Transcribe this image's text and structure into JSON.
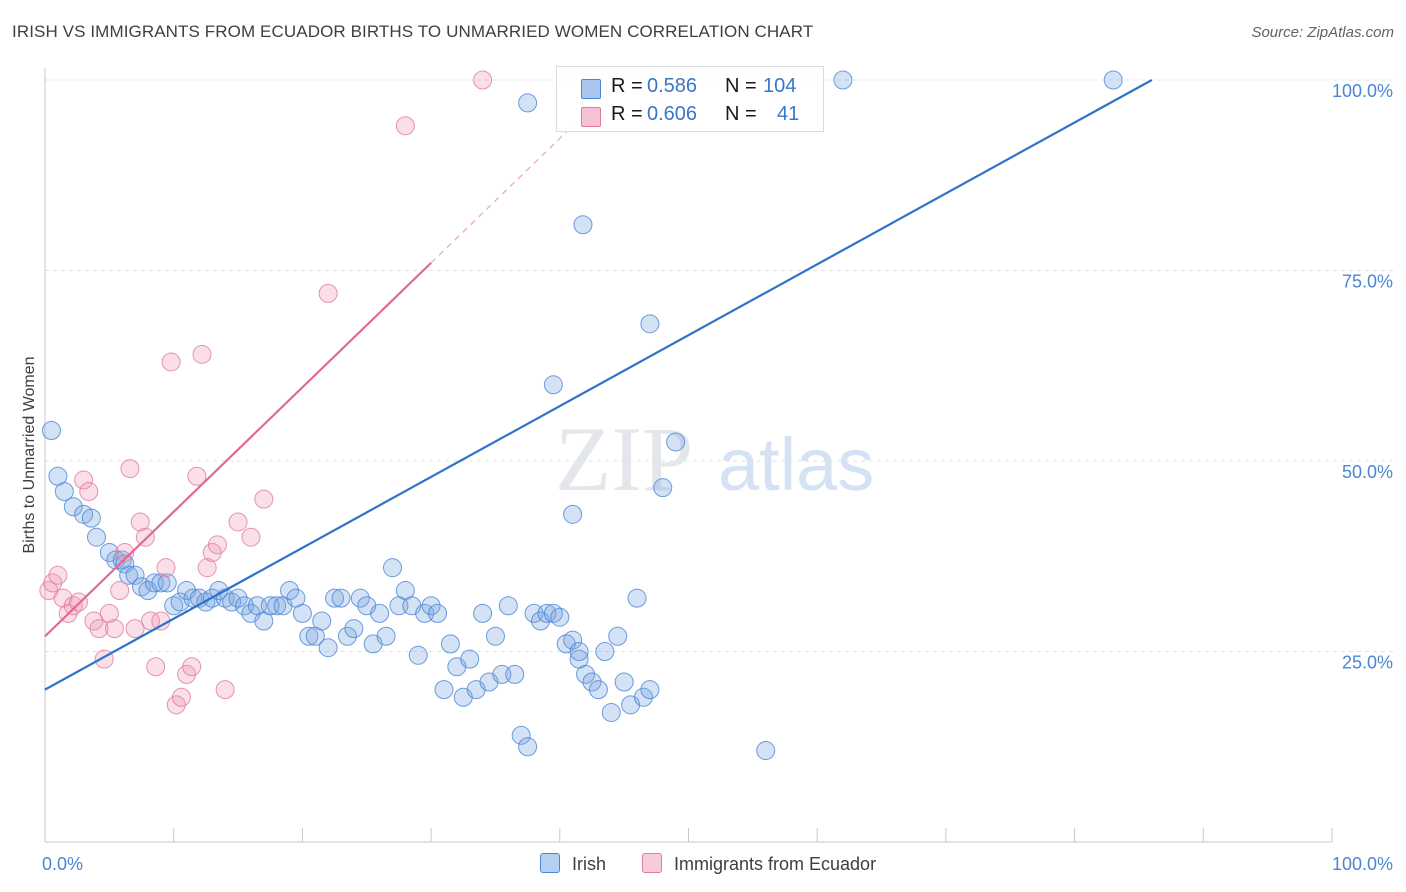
{
  "title": "IRISH VS IMMIGRANTS FROM ECUADOR BIRTHS TO UNMARRIED WOMEN CORRELATION CHART",
  "source": "Source: ZipAtlas.com",
  "watermark": {
    "zip": "ZIP",
    "atlas": "atlas"
  },
  "colors": {
    "blue": "#4a86d4",
    "blue_fill": "rgba(120,165,225,0.32)",
    "pink": "#e07aa0",
    "pink_fill": "rgba(240,150,180,0.30)",
    "axis_text": "#4a86d4",
    "grid": "#dde1e6"
  },
  "legend": {
    "rows": [
      {
        "r_label": "R =",
        "r_value": "0.586",
        "n_label": "N =",
        "n_value": "104",
        "swatch": "#a9c6ee",
        "border": "#4a86d4"
      },
      {
        "r_label": "R =",
        "r_value": "0.606",
        "n_label": "N =",
        "n_value": "41",
        "swatch": "#f6c1d3",
        "border": "#e07aa0"
      }
    ]
  },
  "bottom_legend": [
    {
      "label": "Irish",
      "swatch": "#b7d0f1",
      "border": "#4a86d4"
    },
    {
      "label": "Immigrants from Ecuador",
      "swatch": "#f8cbdb",
      "border": "#e07aa0"
    }
  ],
  "chart_data": {
    "type": "scatter",
    "title": "IRISH VS IMMIGRANTS FROM ECUADOR BIRTHS TO UNMARRIED WOMEN CORRELATION CHART",
    "xlabel": "",
    "ylabel": "Births to Unmarried Women",
    "xlim": [
      0,
      100
    ],
    "ylim": [
      0,
      100
    ],
    "x_tick_labels": [
      "0.0%",
      "100.0%"
    ],
    "y_ticks": [
      25,
      50,
      75,
      100
    ],
    "y_tick_labels": [
      "25.0%",
      "50.0%",
      "75.0%",
      "100.0%"
    ],
    "series": [
      {
        "name": "Irish",
        "r": 0.586,
        "n": 104,
        "trend": {
          "x0": 0,
          "y0": 20,
          "x1": 86,
          "y1": 100
        },
        "points": [
          [
            0.5,
            54
          ],
          [
            1,
            48
          ],
          [
            1.5,
            46
          ],
          [
            2.2,
            44
          ],
          [
            3,
            43
          ],
          [
            3.6,
            42.5
          ],
          [
            4,
            40
          ],
          [
            5,
            38
          ],
          [
            5.5,
            37
          ],
          [
            6,
            37
          ],
          [
            6.2,
            36.5
          ],
          [
            6.5,
            35
          ],
          [
            7,
            35
          ],
          [
            7.5,
            33.5
          ],
          [
            8,
            33
          ],
          [
            8.5,
            34
          ],
          [
            9,
            34
          ],
          [
            9.5,
            34
          ],
          [
            10,
            31
          ],
          [
            10.5,
            31.5
          ],
          [
            11,
            33
          ],
          [
            11.5,
            32
          ],
          [
            12,
            32
          ],
          [
            12.5,
            31.5
          ],
          [
            13,
            32
          ],
          [
            13.5,
            33
          ],
          [
            14,
            32
          ],
          [
            14.5,
            31.5
          ],
          [
            15,
            32
          ],
          [
            15.5,
            31
          ],
          [
            16,
            30
          ],
          [
            16.5,
            31
          ],
          [
            17,
            29
          ],
          [
            17.5,
            31
          ],
          [
            18,
            31
          ],
          [
            18.5,
            31
          ],
          [
            19,
            33
          ],
          [
            19.5,
            32
          ],
          [
            20,
            30
          ],
          [
            20.5,
            27
          ],
          [
            21,
            27
          ],
          [
            21.5,
            29
          ],
          [
            22,
            25.5
          ],
          [
            22.5,
            32
          ],
          [
            23,
            32
          ],
          [
            23.5,
            27
          ],
          [
            24,
            28
          ],
          [
            24.5,
            32
          ],
          [
            25,
            31
          ],
          [
            25.5,
            26
          ],
          [
            26,
            30
          ],
          [
            26.5,
            27
          ],
          [
            27,
            36
          ],
          [
            27.5,
            31
          ],
          [
            28,
            33
          ],
          [
            28.5,
            31
          ],
          [
            29,
            24.5
          ],
          [
            29.5,
            30
          ],
          [
            30,
            31
          ],
          [
            30.5,
            30
          ],
          [
            31,
            20
          ],
          [
            31.5,
            26
          ],
          [
            32,
            23
          ],
          [
            32.5,
            19
          ],
          [
            33,
            24
          ],
          [
            33.5,
            20
          ],
          [
            34,
            30
          ],
          [
            34.5,
            21
          ],
          [
            35,
            27
          ],
          [
            35.5,
            22
          ],
          [
            36,
            31
          ],
          [
            36.5,
            22
          ],
          [
            37,
            14
          ],
          [
            37.5,
            12.5
          ],
          [
            38,
            30
          ],
          [
            38.5,
            29
          ],
          [
            39,
            30
          ],
          [
            39.5,
            30
          ],
          [
            40,
            29.5
          ],
          [
            40.5,
            26
          ],
          [
            41,
            26.5
          ],
          [
            41.5,
            24
          ],
          [
            42,
            22
          ],
          [
            42.5,
            21
          ],
          [
            43,
            20
          ],
          [
            43.5,
            25
          ],
          [
            44,
            17
          ],
          [
            44.5,
            27
          ],
          [
            45,
            21
          ],
          [
            45.5,
            18
          ],
          [
            46,
            32
          ],
          [
            46.5,
            19
          ],
          [
            47,
            20
          ],
          [
            37.5,
            97
          ],
          [
            39.5,
            60
          ],
          [
            41,
            43
          ],
          [
            41.5,
            25
          ],
          [
            41.8,
            81
          ],
          [
            47,
            68
          ],
          [
            48,
            46.5
          ],
          [
            49,
            52.5
          ],
          [
            56,
            12
          ],
          [
            62,
            100
          ],
          [
            83,
            100
          ]
        ]
      },
      {
        "name": "Immigrants from Ecuador",
        "r": 0.606,
        "n": 41,
        "trend": {
          "x0": 0,
          "y0": 27,
          "x1": 30,
          "y1": 76
        },
        "points": [
          [
            0.3,
            33
          ],
          [
            0.6,
            34
          ],
          [
            1,
            35
          ],
          [
            1.4,
            32
          ],
          [
            1.8,
            30
          ],
          [
            2.2,
            31
          ],
          [
            2.6,
            31.5
          ],
          [
            3,
            47.5
          ],
          [
            3.4,
            46
          ],
          [
            3.8,
            29
          ],
          [
            4.2,
            28
          ],
          [
            4.6,
            24
          ],
          [
            5,
            30
          ],
          [
            5.4,
            28
          ],
          [
            5.8,
            33
          ],
          [
            6.2,
            38
          ],
          [
            6.6,
            49
          ],
          [
            7,
            28
          ],
          [
            7.4,
            42
          ],
          [
            7.8,
            40
          ],
          [
            8.2,
            29
          ],
          [
            8.6,
            23
          ],
          [
            9,
            29
          ],
          [
            9.4,
            36
          ],
          [
            9.8,
            63
          ],
          [
            10.2,
            18
          ],
          [
            10.6,
            19
          ],
          [
            11,
            22
          ],
          [
            11.4,
            23
          ],
          [
            11.8,
            48
          ],
          [
            12.2,
            64
          ],
          [
            12.6,
            36
          ],
          [
            13,
            38
          ],
          [
            13.4,
            39
          ],
          [
            14,
            20
          ],
          [
            15,
            42
          ],
          [
            16,
            40
          ],
          [
            17,
            45
          ],
          [
            22,
            72
          ],
          [
            28,
            94
          ],
          [
            34,
            100
          ]
        ]
      }
    ]
  }
}
